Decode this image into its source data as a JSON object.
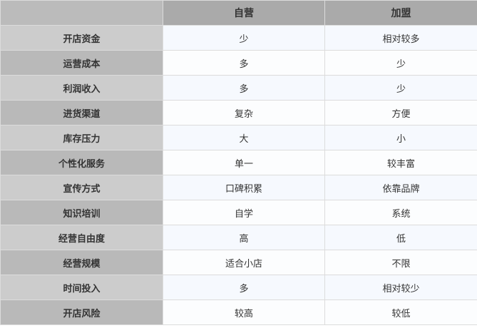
{
  "table": {
    "headers": [
      "",
      "自营",
      "加盟"
    ],
    "rows": [
      [
        "开店资金",
        "少",
        "相对较多"
      ],
      [
        "运营成本",
        "多",
        "少"
      ],
      [
        "利润收入",
        "多",
        "少"
      ],
      [
        "进货渠道",
        "复杂",
        "方便"
      ],
      [
        "库存压力",
        "大",
        "小"
      ],
      [
        "个性化服务",
        "单一",
        "较丰富"
      ],
      [
        "宣传方式",
        "口碑积累",
        "依靠品牌"
      ],
      [
        "知识培训",
        "自学",
        "系统"
      ],
      [
        "经营自由度",
        "高",
        "低"
      ],
      [
        "经营规模",
        "适合小店",
        "不限"
      ],
      [
        "时间投入",
        "多",
        "相对较少"
      ],
      [
        "开店风险",
        "较高",
        "较低"
      ]
    ]
  }
}
